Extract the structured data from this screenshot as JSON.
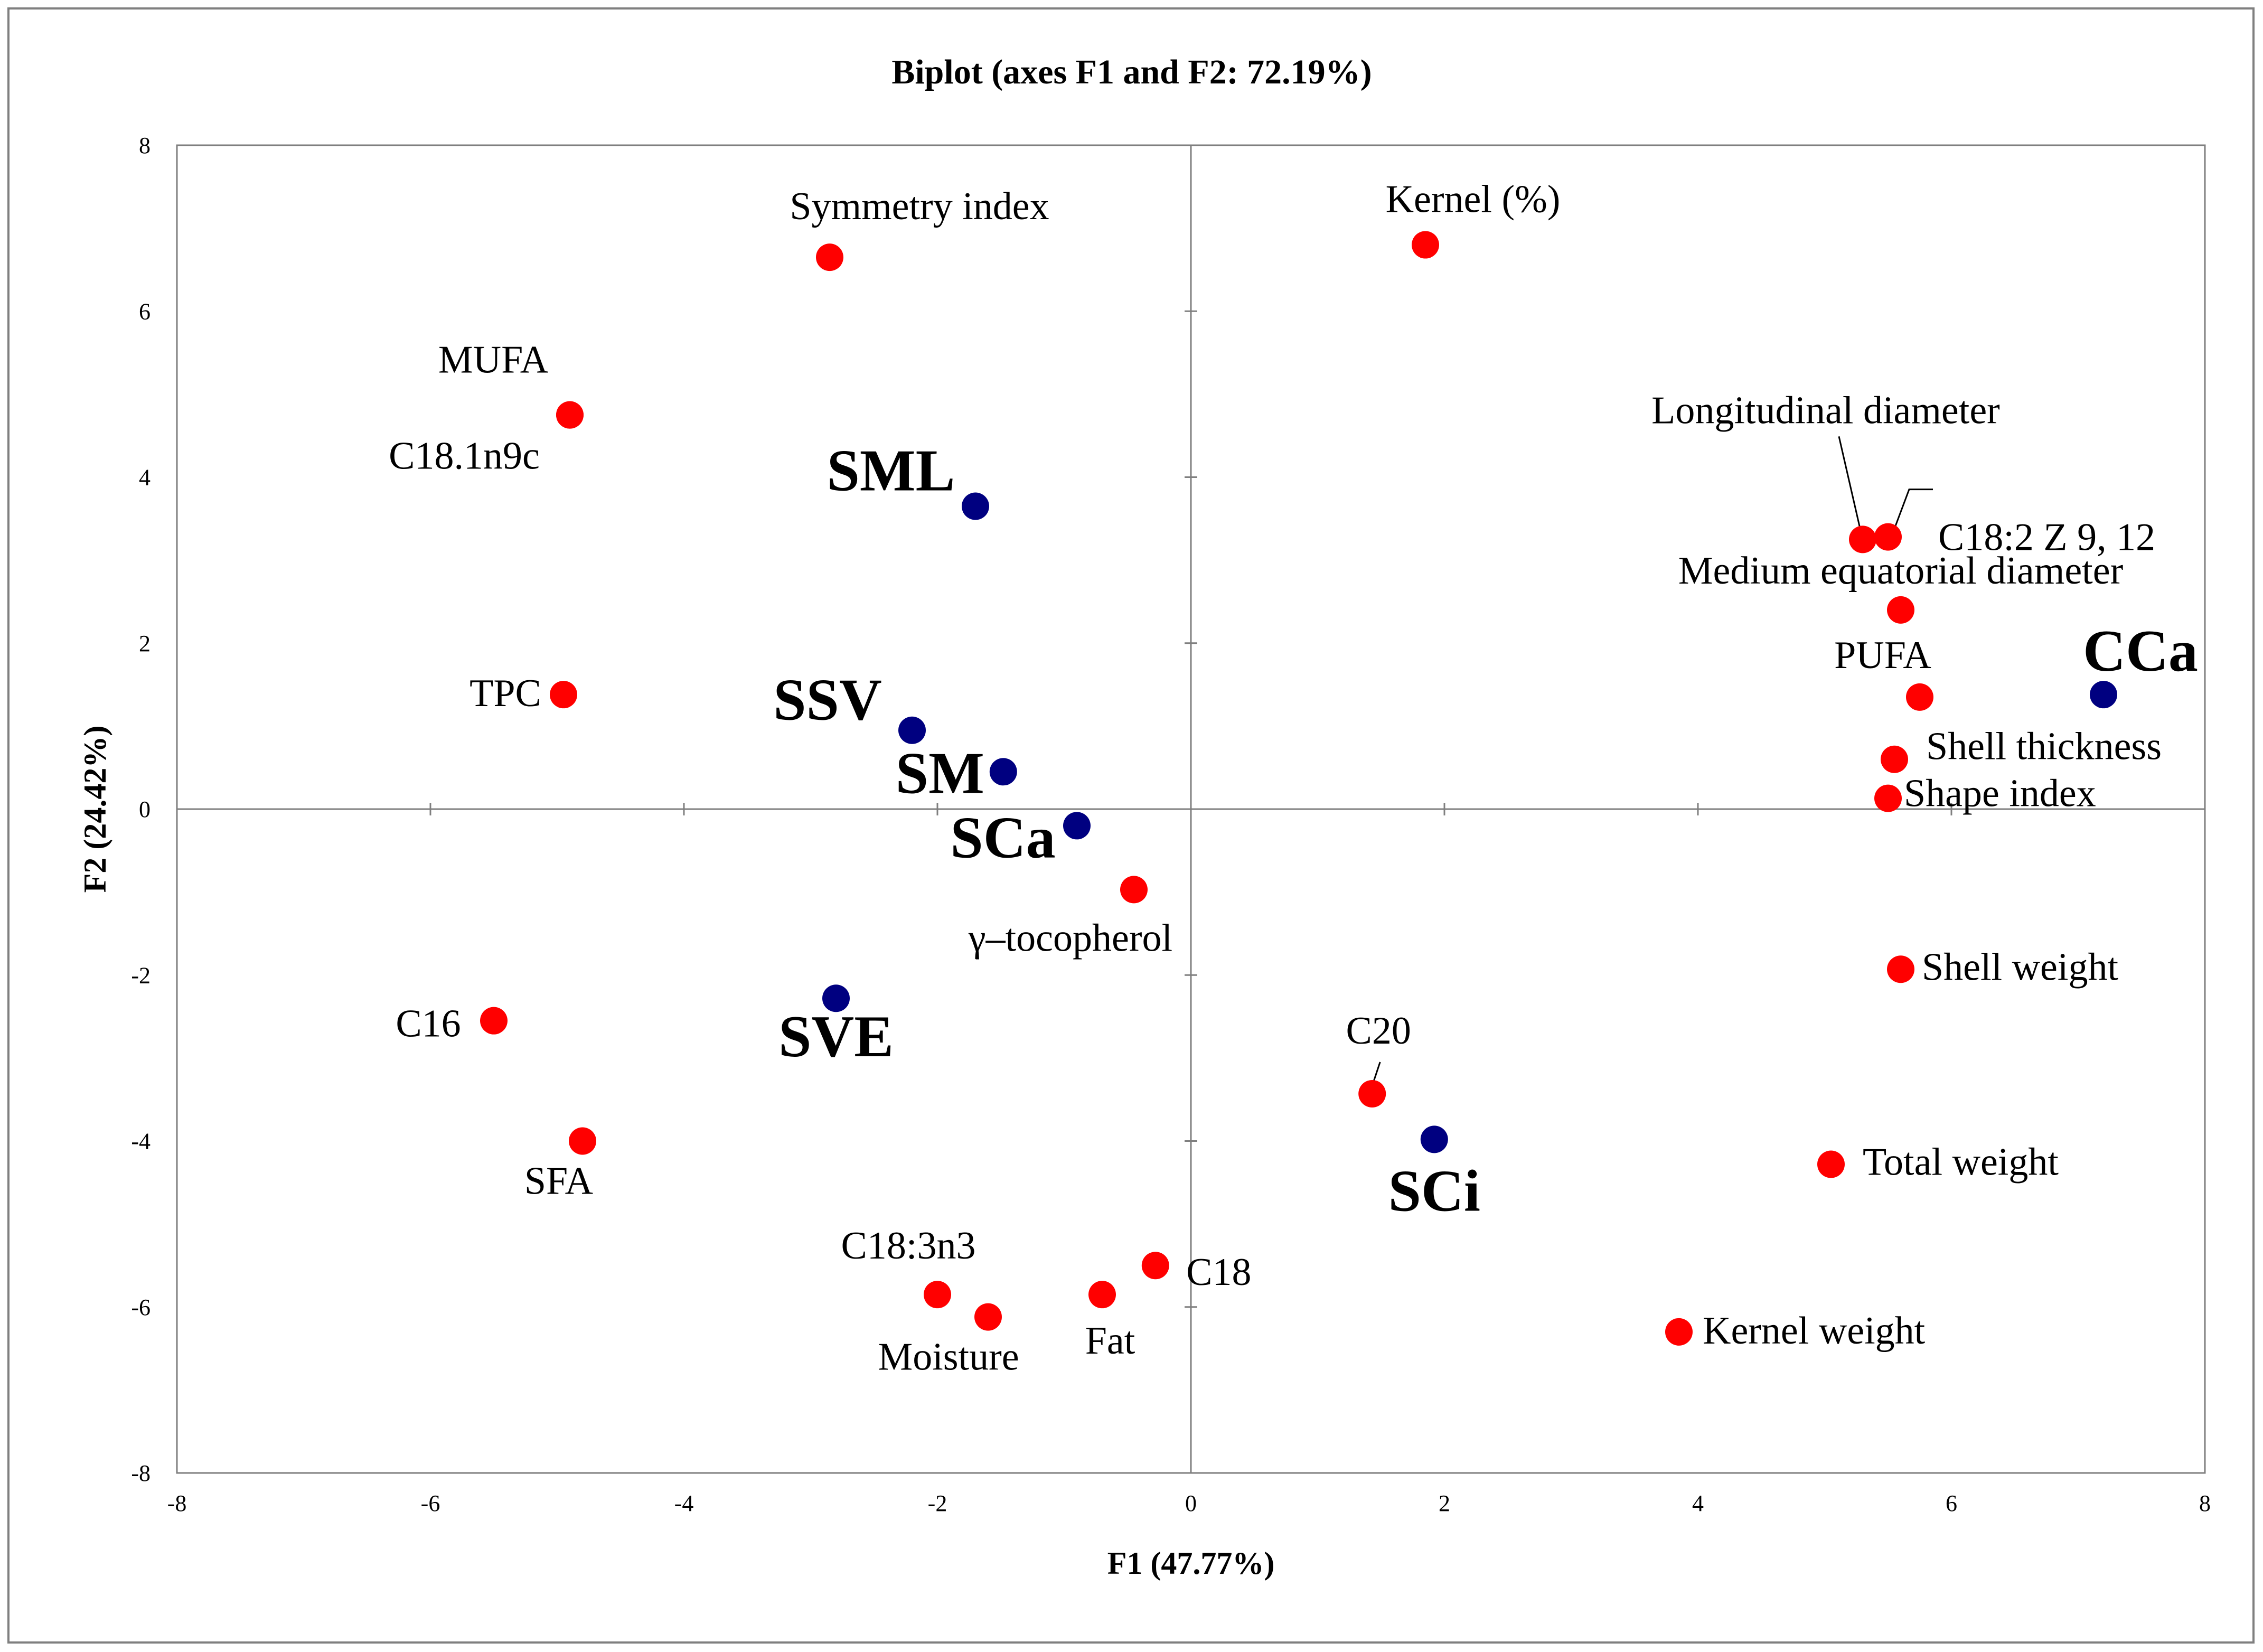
{
  "chart_data": {
    "type": "scatter",
    "title": "Biplot (axes F1 and F2: 72.19%)",
    "xlabel": "F1 (47.77%)",
    "ylabel": "F2 (24.42%)",
    "xlim": [
      -8,
      8
    ],
    "ylim": [
      -8,
      8
    ],
    "xticks": [
      "-8",
      "-6",
      "-4",
      "-2",
      "0",
      "2",
      "4",
      "6",
      "8"
    ],
    "yticks": [
      "8",
      "6",
      "4",
      "2",
      "0",
      "-2",
      "-4",
      "-6",
      "-8"
    ],
    "colors": {
      "variables": "#ff0000",
      "observations": "#000080",
      "axes": "#7f7f7f"
    },
    "series": [
      {
        "name": "variables",
        "points": [
          {
            "label": "Symmetry index",
            "x": -2.85,
            "y": 6.65
          },
          {
            "label": "Kernel (%)",
            "x": 1.85,
            "y": 6.8
          },
          {
            "label": "MUFA",
            "x": -4.9,
            "y": 4.75
          },
          {
            "label": "C18.1n9c",
            "x": -4.9,
            "y": 4.75
          },
          {
            "label": "Longitudinal diameter",
            "x": 5.3,
            "y": 3.25
          },
          {
            "label": "C18:2 Z 9, 12",
            "x": 5.5,
            "y": 3.28
          },
          {
            "label": "Medium equatorial diameter",
            "x": 5.6,
            "y": 2.4
          },
          {
            "label": "TPC",
            "x": -4.95,
            "y": 1.38
          },
          {
            "label": "PUFA",
            "x": 5.75,
            "y": 1.35
          },
          {
            "label": "Shell thickness",
            "x": 5.55,
            "y": 0.6
          },
          {
            "label": "Shape index",
            "x": 5.5,
            "y": 0.13
          },
          {
            "label": "γ–tocopherol",
            "x": -0.45,
            "y": -0.97
          },
          {
            "label": "Shell weight",
            "x": 5.6,
            "y": -1.93
          },
          {
            "label": "C16",
            "x": -5.5,
            "y": -2.55
          },
          {
            "label": "C20",
            "x": 1.43,
            "y": -3.43
          },
          {
            "label": "SFA",
            "x": -4.8,
            "y": -4.0
          },
          {
            "label": "Total weight",
            "x": 5.05,
            "y": -4.28
          },
          {
            "label": "C18",
            "x": -0.28,
            "y": -5.5
          },
          {
            "label": "C18:3n3",
            "x": -2.0,
            "y": -5.85
          },
          {
            "label": "Fat",
            "x": -0.7,
            "y": -5.85
          },
          {
            "label": "Moisture",
            "x": -1.6,
            "y": -6.12
          },
          {
            "label": "Kernel weight",
            "x": 3.85,
            "y": -6.3
          }
        ]
      },
      {
        "name": "observations",
        "points": [
          {
            "label": "SML",
            "x": -1.7,
            "y": 3.65
          },
          {
            "label": "SSV",
            "x": -2.2,
            "y": 0.95
          },
          {
            "label": "SM",
            "x": -1.48,
            "y": 0.45
          },
          {
            "label": "SCa",
            "x": -0.9,
            "y": -0.2
          },
          {
            "label": "SVE",
            "x": -2.8,
            "y": -2.28
          },
          {
            "label": "SCi",
            "x": 1.92,
            "y": -3.98
          },
          {
            "label": "CCa",
            "x": 7.2,
            "y": 1.38
          }
        ]
      }
    ]
  }
}
